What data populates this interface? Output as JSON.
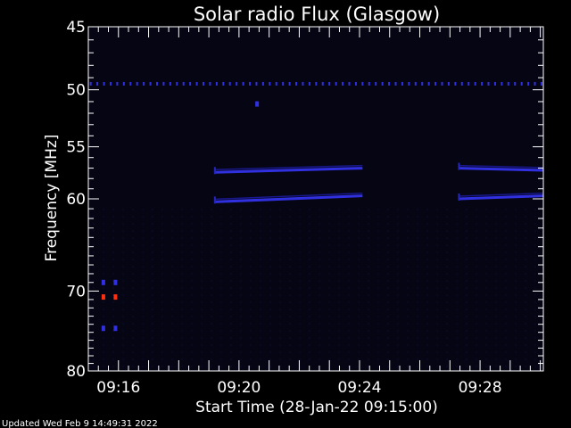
{
  "chart_data": {
    "type": "heatmap",
    "title": "Solar radio Flux (Glasgow)",
    "xlabel": "Start Time (28-Jan-22 09:15:00)",
    "ylabel": "Frequency [MHz]",
    "x_range_minutes": [
      0,
      15.1
    ],
    "y_range_mhz": [
      45,
      80
    ],
    "y_scale": "log",
    "x_ticks": [
      {
        "minute": 1,
        "label": "09:16"
      },
      {
        "minute": 5,
        "label": "09:20"
      },
      {
        "minute": 9,
        "label": "09:24"
      },
      {
        "minute": 13,
        "label": "09:28"
      }
    ],
    "y_ticks_major": [
      {
        "value": 45,
        "label": "45"
      },
      {
        "value": 50,
        "label": "50"
      },
      {
        "value": 55,
        "label": "55"
      },
      {
        "value": 60,
        "label": "60"
      },
      {
        "value": 70,
        "label": "70"
      },
      {
        "value": 80,
        "label": "80"
      }
    ],
    "y_ticks_minor": [
      46,
      47,
      48,
      49,
      51,
      52,
      53,
      54,
      56,
      57,
      58,
      59,
      61,
      62,
      63,
      64,
      65,
      66,
      67,
      68,
      69,
      71,
      72,
      73,
      74,
      75,
      76,
      77,
      78,
      79
    ],
    "background_color": "#050514",
    "signal_color": "#3030e0",
    "hot_color": "#ff3010",
    "bands": [
      {
        "freq_start": 57.4,
        "freq_end": 57.0,
        "t_start": 4.2,
        "t_end": 9.1
      },
      {
        "freq_start": 60.3,
        "freq_end": 59.7,
        "t_start": 4.2,
        "t_end": 9.1
      },
      {
        "freq_start": 57.0,
        "freq_end": 57.2,
        "t_start": 12.3,
        "t_end": 15.1
      },
      {
        "freq_start": 60.0,
        "freq_end": 59.7,
        "t_start": 12.3,
        "t_end": 15.1
      }
    ],
    "dotted_line": {
      "freq": 49.5,
      "t_start": 0,
      "t_end": 15.1
    },
    "bursts": [
      {
        "t": 0.5,
        "freq": 70.7,
        "intensity": "hot"
      },
      {
        "t": 0.9,
        "freq": 70.7,
        "intensity": "hot"
      },
      {
        "t": 0.5,
        "freq": 69.0,
        "intensity": "low"
      },
      {
        "t": 0.9,
        "freq": 69.0,
        "intensity": "low"
      },
      {
        "t": 0.5,
        "freq": 74.5,
        "intensity": "low"
      },
      {
        "t": 0.9,
        "freq": 74.5,
        "intensity": "low"
      },
      {
        "t": 5.6,
        "freq": 51.2,
        "intensity": "low"
      }
    ]
  },
  "footer": {
    "updated": "Updated Wed Feb  9 14:49:31 2022"
  }
}
